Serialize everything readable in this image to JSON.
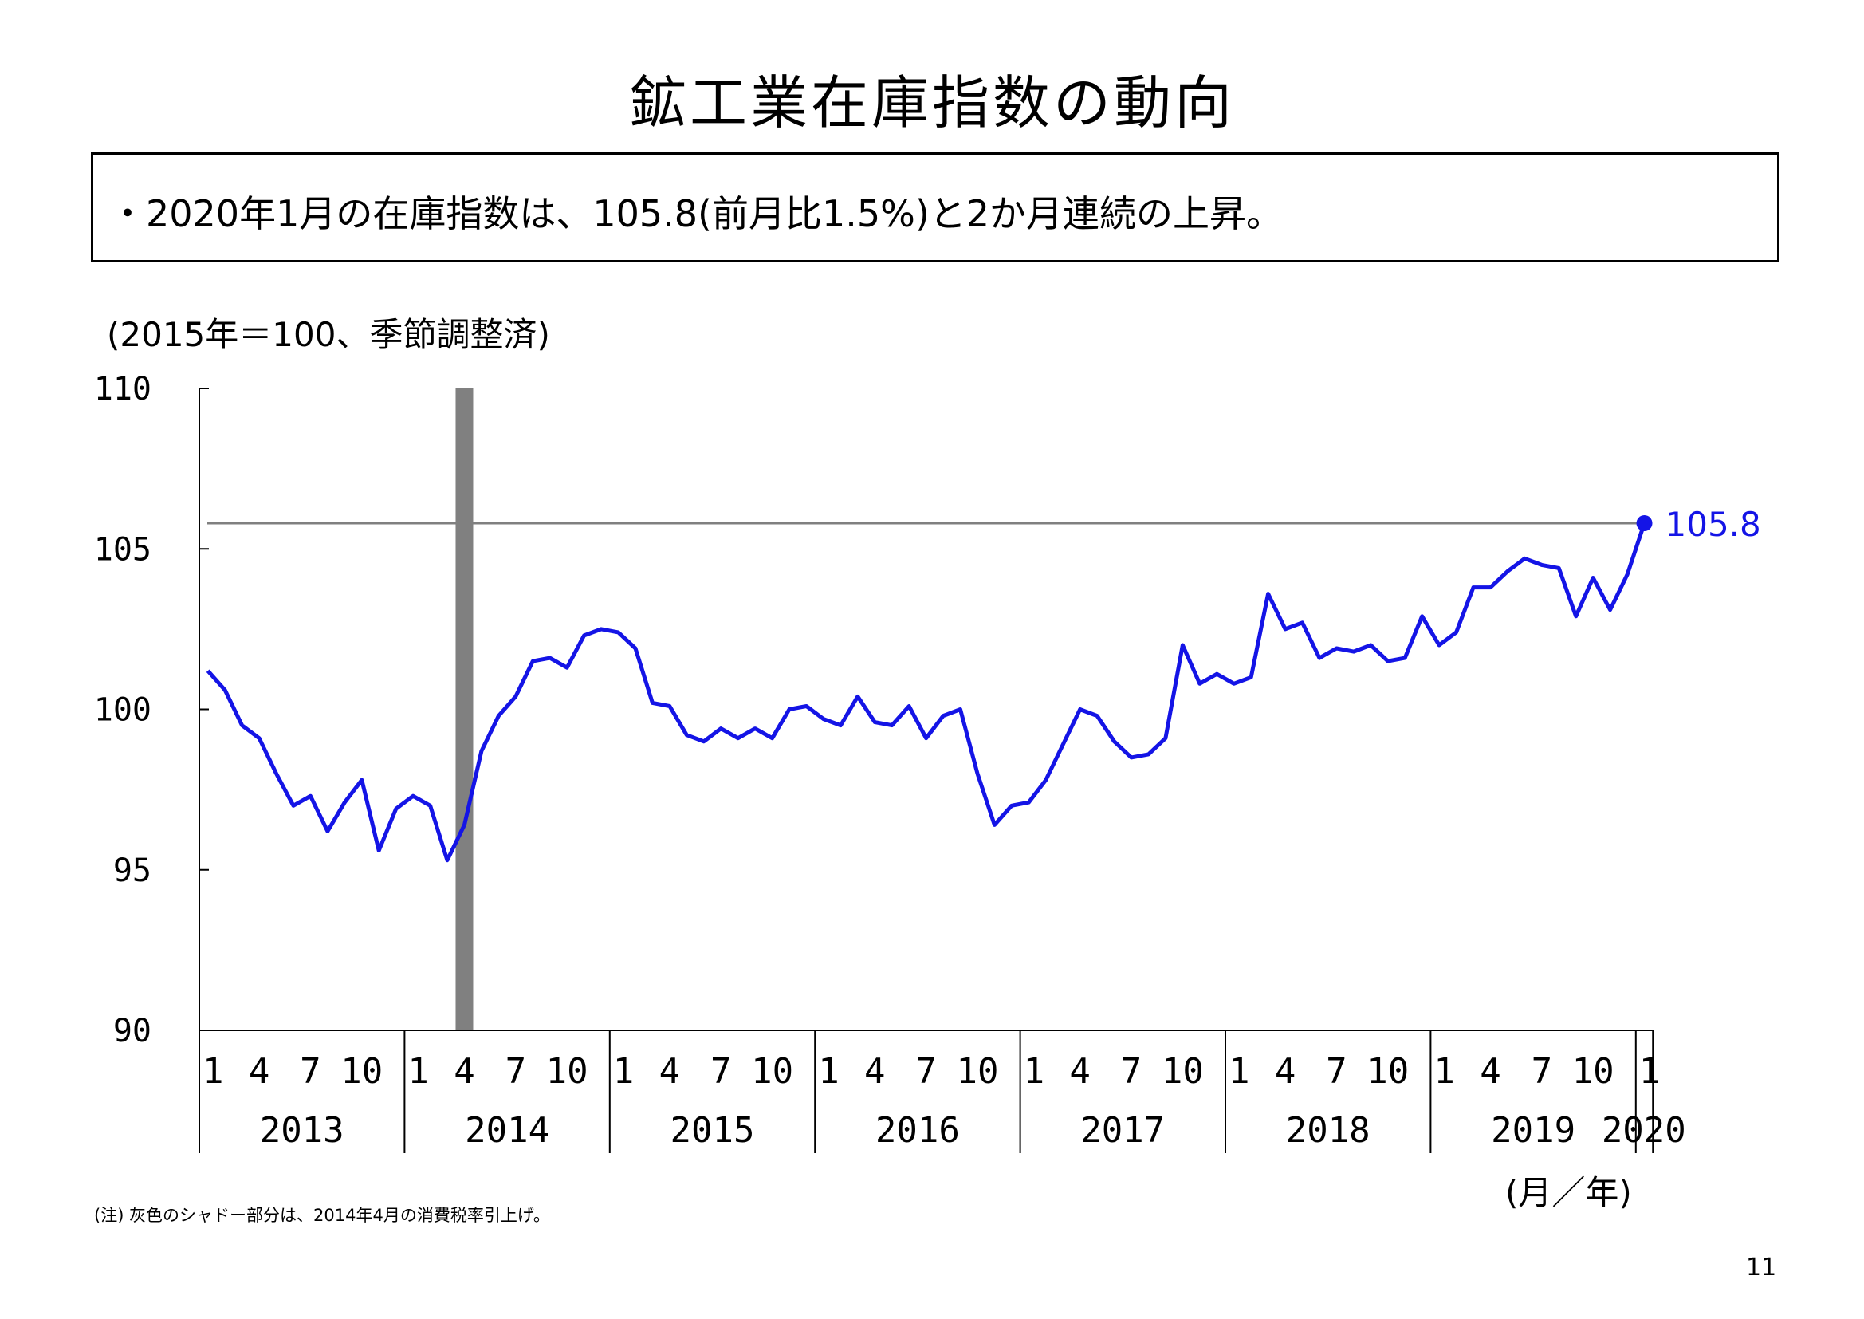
{
  "title": "鉱工業在庫指数の動向",
  "summary": "・2020年1月の在庫指数は、105.8(前月比1.5%)と2か月連続の上昇。",
  "unit_note": "(2015年＝100、季節調整済)",
  "axis_unit": "(月／年)",
  "footnote": "(注) 灰色のシャドー部分は、2014年4月の消費税率引上げ。",
  "page_number": "11",
  "colors": {
    "series": "#1414e6",
    "shade": "#808080",
    "reference": "#808080",
    "axis": "#000000"
  },
  "chart_data": {
    "type": "line",
    "title": "",
    "xlabel": "(月／年)",
    "ylabel": "(2015年＝100、季節調整済)",
    "ylim": [
      90,
      110
    ],
    "y_ticks": [
      90,
      95,
      100,
      105,
      110
    ],
    "month_ticks": [
      "1",
      "4",
      "7",
      "10"
    ],
    "years": [
      "2013",
      "2014",
      "2015",
      "2016",
      "2017",
      "2018",
      "2019",
      "2020"
    ],
    "start": "2013-01",
    "end": "2020-01",
    "shaded_month": "2014-04",
    "reference_line": 105.8,
    "last_label": "105.8",
    "series": [
      {
        "name": "",
        "values": [
          101.2,
          100.6,
          99.5,
          99.1,
          98.0,
          97.0,
          97.3,
          96.2,
          97.1,
          97.8,
          95.6,
          96.9,
          97.3,
          97.0,
          95.3,
          96.4,
          98.7,
          99.8,
          100.4,
          101.5,
          101.6,
          101.3,
          102.3,
          102.5,
          102.4,
          101.9,
          100.2,
          100.1,
          99.2,
          99.0,
          99.4,
          99.1,
          99.4,
          99.1,
          100.0,
          100.1,
          99.7,
          99.5,
          100.4,
          99.6,
          99.5,
          100.1,
          99.1,
          99.8,
          100.0,
          98.0,
          96.4,
          97.0,
          97.1,
          97.8,
          98.9,
          100.0,
          99.8,
          99.0,
          98.5,
          98.6,
          99.1,
          102.0,
          100.8,
          101.1,
          100.8,
          101.0,
          103.6,
          102.5,
          102.7,
          101.6,
          101.9,
          101.8,
          102.0,
          101.5,
          101.6,
          102.9,
          102.0,
          102.4,
          103.8,
          103.8,
          104.3,
          104.7,
          104.5,
          104.4,
          102.9,
          104.1,
          103.1,
          104.2,
          105.8
        ]
      }
    ]
  }
}
